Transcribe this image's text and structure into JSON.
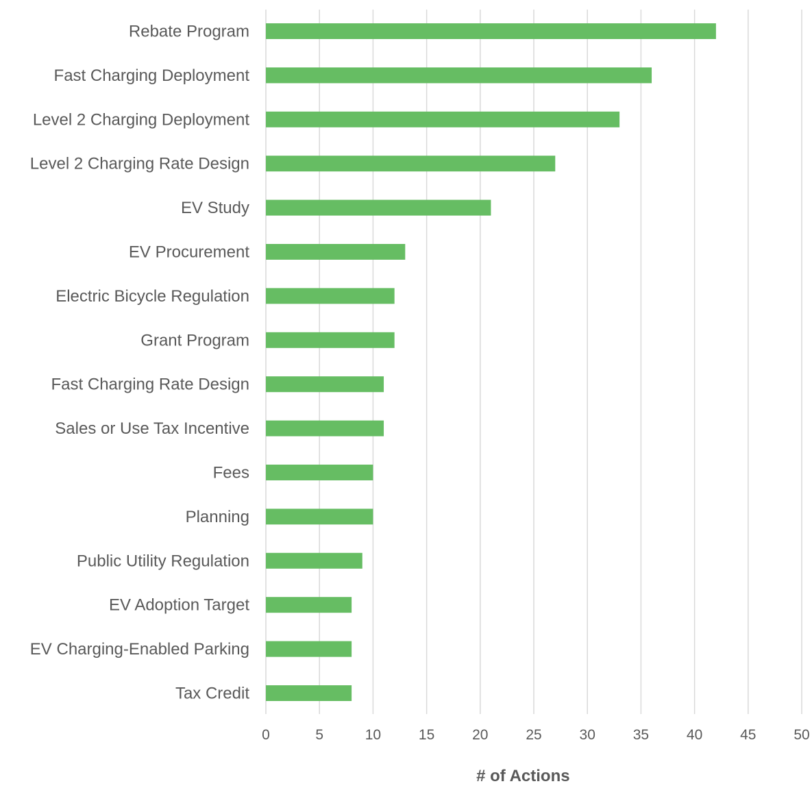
{
  "chart_data": {
    "type": "bar",
    "orientation": "horizontal",
    "categories": [
      "Rebate Program",
      "Fast Charging Deployment",
      "Level 2 Charging Deployment",
      "Level 2 Charging Rate Design",
      "EV Study",
      "EV Procurement",
      "Electric Bicycle Regulation",
      "Grant Program",
      "Fast Charging Rate Design",
      "Sales or Use Tax Incentive",
      "Fees",
      "Planning",
      "Public Utility Regulation",
      "EV Adoption Target",
      "EV Charging-Enabled Parking",
      "Tax Credit"
    ],
    "values": [
      42,
      36,
      33,
      27,
      21,
      13,
      12,
      12,
      11,
      11,
      10,
      10,
      9,
      8,
      8,
      8
    ],
    "title": "",
    "xlabel": "# of Actions",
    "ylabel": "",
    "xlim": [
      0,
      50
    ],
    "xticks": [
      0,
      5,
      10,
      15,
      20,
      25,
      30,
      35,
      40,
      45,
      50
    ],
    "grid": "vertical",
    "legend": "none",
    "bar_color": "#66bd63"
  }
}
